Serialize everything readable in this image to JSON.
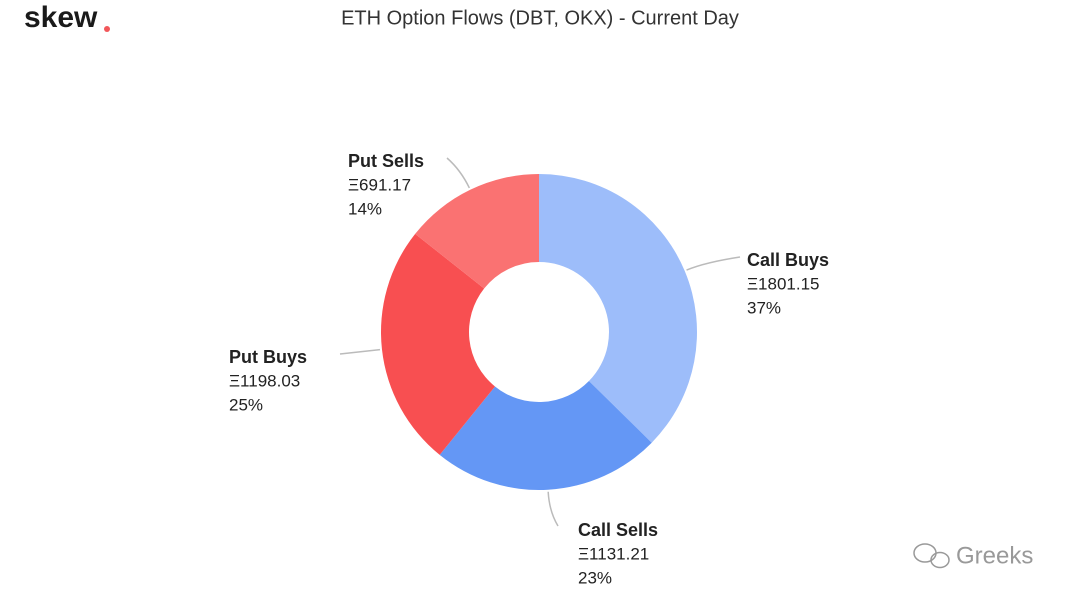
{
  "logo": "skew",
  "watermark": "Greeks",
  "chart_data": {
    "type": "donut",
    "title": "ETH Option Flows (DBT, OKX) - Current Day",
    "categories": [
      "Call Buys",
      "Call Sells",
      "Put Buys",
      "Put Sells"
    ],
    "values": [
      1801.15,
      1131.21,
      1198.03,
      691.17
    ],
    "value_labels": [
      "Ξ1801.15",
      "Ξ1131.21",
      "Ξ1198.03",
      "Ξ691.17"
    ],
    "percent_labels": [
      "37%",
      "23%",
      "25%",
      "14%"
    ],
    "colors": [
      "#9dbdfa",
      "#6497f5",
      "#f84f51",
      "#fa7272"
    ]
  }
}
